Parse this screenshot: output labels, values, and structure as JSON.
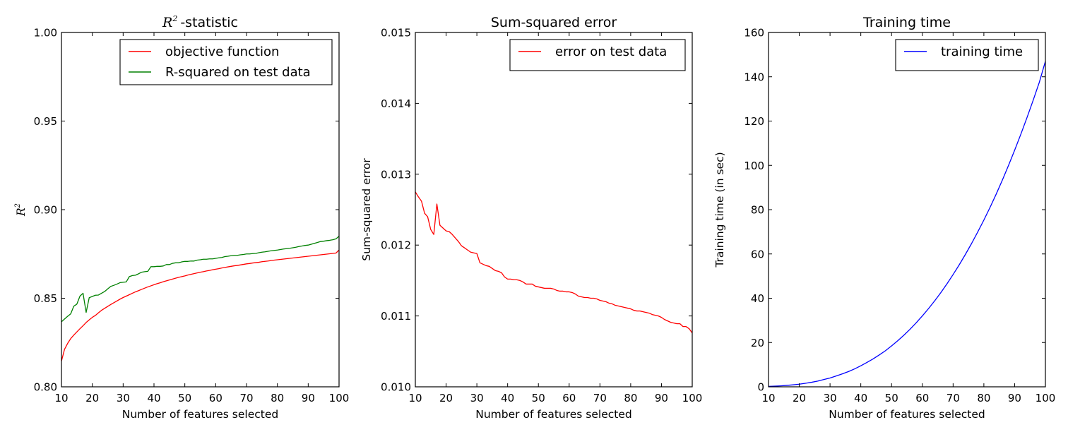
{
  "figure": {
    "background": "#ffffff"
  },
  "chart_data": [
    {
      "type": "line",
      "title_math": "R",
      "title_sup": "2",
      "title": "-statistic",
      "xlabel": "Number of features selected",
      "ylabel_math": "R",
      "ylabel_sup": "2",
      "xlim": [
        10,
        100
      ],
      "ylim": [
        0.8,
        1.0
      ],
      "xticks": [
        "10",
        "20",
        "30",
        "40",
        "50",
        "60",
        "70",
        "80",
        "90",
        "100"
      ],
      "yticks": [
        "0.80",
        "0.85",
        "0.90",
        "0.95",
        "1.00"
      ],
      "grid": false,
      "legend_position": "top-right",
      "x": [
        10,
        11,
        12,
        13,
        14,
        15,
        16,
        17,
        18,
        19,
        20,
        21,
        22,
        23,
        24,
        25,
        26,
        27,
        28,
        29,
        30,
        31,
        32,
        33,
        34,
        35,
        36,
        37,
        38,
        39,
        40,
        41,
        42,
        43,
        44,
        45,
        46,
        47,
        48,
        49,
        50,
        51,
        52,
        53,
        54,
        55,
        56,
        57,
        58,
        59,
        60,
        61,
        62,
        63,
        64,
        65,
        66,
        67,
        68,
        69,
        70,
        71,
        72,
        73,
        74,
        75,
        76,
        77,
        78,
        79,
        80,
        81,
        82,
        83,
        84,
        85,
        86,
        87,
        88,
        89,
        90,
        91,
        92,
        93,
        94,
        95,
        96,
        97,
        98,
        99,
        100
      ],
      "series": [
        {
          "name": "objective function",
          "color": "#ff0000",
          "values": [
            0.8145,
            0.8212,
            0.8245,
            0.8272,
            0.8292,
            0.831,
            0.8328,
            0.8345,
            0.8363,
            0.8378,
            0.8392,
            0.8403,
            0.8418,
            0.8432,
            0.8443,
            0.8454,
            0.8465,
            0.8475,
            0.8485,
            0.8495,
            0.8504,
            0.8512,
            0.852,
            0.8528,
            0.8536,
            0.8543,
            0.855,
            0.8557,
            0.8564,
            0.857,
            0.8576,
            0.8582,
            0.8587,
            0.8593,
            0.8598,
            0.8603,
            0.8608,
            0.8613,
            0.8618,
            0.8622,
            0.8626,
            0.8631,
            0.8635,
            0.8639,
            0.8643,
            0.8647,
            0.865,
            0.8654,
            0.8657,
            0.8661,
            0.8664,
            0.8667,
            0.8671,
            0.8674,
            0.8677,
            0.868,
            0.8683,
            0.8685,
            0.8688,
            0.8691,
            0.8694,
            0.8696,
            0.8699,
            0.8701,
            0.8703,
            0.8706,
            0.8708,
            0.871,
            0.8713,
            0.8715,
            0.8717,
            0.8719,
            0.8721,
            0.8723,
            0.8725,
            0.8727,
            0.8729,
            0.8731,
            0.8733,
            0.8735,
            0.8737,
            0.8739,
            0.8741,
            0.8743,
            0.8745,
            0.8747,
            0.8749,
            0.8751,
            0.8753,
            0.8755,
            0.8772
          ]
        },
        {
          "name": "R-squared on test data",
          "color": "#008000",
          "values": [
            0.8367,
            0.8383,
            0.8398,
            0.8412,
            0.8455,
            0.8467,
            0.8512,
            0.8528,
            0.842,
            0.8503,
            0.851,
            0.8517,
            0.8518,
            0.8528,
            0.8538,
            0.8553,
            0.8567,
            0.8573,
            0.858,
            0.8588,
            0.859,
            0.8592,
            0.8622,
            0.8628,
            0.863,
            0.8638,
            0.8647,
            0.865,
            0.8652,
            0.8678,
            0.8678,
            0.868,
            0.868,
            0.8682,
            0.869,
            0.869,
            0.8697,
            0.87,
            0.87,
            0.8705,
            0.8708,
            0.8708,
            0.871,
            0.871,
            0.8715,
            0.8717,
            0.872,
            0.872,
            0.8722,
            0.8722,
            0.8725,
            0.8728,
            0.873,
            0.8735,
            0.8737,
            0.874,
            0.8742,
            0.8742,
            0.8745,
            0.8747,
            0.875,
            0.875,
            0.8752,
            0.8753,
            0.8757,
            0.876,
            0.8762,
            0.8765,
            0.8768,
            0.877,
            0.8772,
            0.8775,
            0.8778,
            0.878,
            0.8782,
            0.8785,
            0.8788,
            0.8792,
            0.8795,
            0.8798,
            0.88,
            0.8805,
            0.881,
            0.8815,
            0.882,
            0.8822,
            0.8825,
            0.8827,
            0.883,
            0.8835,
            0.885
          ]
        }
      ]
    },
    {
      "type": "line",
      "title": "Sum-squared error",
      "xlabel": "Number of features selected",
      "ylabel": "Sum-squared error",
      "xlim": [
        10,
        100
      ],
      "ylim": [
        0.01,
        0.015
      ],
      "xticks": [
        "10",
        "20",
        "30",
        "40",
        "50",
        "60",
        "70",
        "80",
        "90",
        "100"
      ],
      "yticks": [
        "0.010",
        "0.011",
        "0.012",
        "0.013",
        "0.014",
        "0.015"
      ],
      "grid": false,
      "legend_position": "top-right",
      "x": [
        10,
        11,
        12,
        13,
        14,
        15,
        16,
        17,
        18,
        19,
        20,
        21,
        22,
        23,
        24,
        25,
        26,
        27,
        28,
        29,
        30,
        31,
        32,
        33,
        34,
        35,
        36,
        37,
        38,
        39,
        40,
        41,
        42,
        43,
        44,
        45,
        46,
        47,
        48,
        49,
        50,
        51,
        52,
        53,
        54,
        55,
        56,
        57,
        58,
        59,
        60,
        61,
        62,
        63,
        64,
        65,
        66,
        67,
        68,
        69,
        70,
        71,
        72,
        73,
        74,
        75,
        76,
        77,
        78,
        79,
        80,
        81,
        82,
        83,
        84,
        85,
        86,
        87,
        88,
        89,
        90,
        91,
        92,
        93,
        94,
        95,
        96,
        97,
        98,
        99,
        100
      ],
      "series": [
        {
          "name": "error on test data",
          "color": "#ff0000",
          "values": [
            0.01275,
            0.01268,
            0.01262,
            0.01245,
            0.0124,
            0.01222,
            0.01215,
            0.01258,
            0.01228,
            0.01224,
            0.0122,
            0.01219,
            0.01215,
            0.0121,
            0.01205,
            0.01199,
            0.01196,
            0.01193,
            0.0119,
            0.01189,
            0.01188,
            0.01175,
            0.01173,
            0.01171,
            0.0117,
            0.01167,
            0.01164,
            0.01163,
            0.01161,
            0.01155,
            0.01152,
            0.01152,
            0.01151,
            0.01151,
            0.0115,
            0.01148,
            0.01145,
            0.01145,
            0.01145,
            0.01142,
            0.01141,
            0.0114,
            0.01139,
            0.01139,
            0.01139,
            0.01138,
            0.01136,
            0.01135,
            0.01135,
            0.01134,
            0.01134,
            0.01133,
            0.01131,
            0.01128,
            0.01127,
            0.01126,
            0.01126,
            0.01125,
            0.01125,
            0.01124,
            0.01122,
            0.01121,
            0.0112,
            0.01118,
            0.01117,
            0.01115,
            0.01114,
            0.01113,
            0.01112,
            0.01111,
            0.0111,
            0.01108,
            0.01107,
            0.01107,
            0.01106,
            0.01105,
            0.01104,
            0.01102,
            0.01101,
            0.011,
            0.01098,
            0.01095,
            0.01093,
            0.01091,
            0.0109,
            0.01089,
            0.01089,
            0.01085,
            0.01085,
            0.01082,
            0.01076
          ]
        }
      ]
    },
    {
      "type": "line",
      "title": "Training time",
      "xlabel": "Number of features selected",
      "ylabel": "Training time (in sec)",
      "xlim": [
        10,
        100
      ],
      "ylim": [
        0,
        160
      ],
      "xticks": [
        "10",
        "20",
        "30",
        "40",
        "50",
        "60",
        "70",
        "80",
        "90",
        "100"
      ],
      "yticks": [
        "0",
        "20",
        "40",
        "60",
        "80",
        "100",
        "120",
        "140",
        "160"
      ],
      "grid": false,
      "legend_position": "top-right",
      "x": [
        10,
        12,
        14,
        16,
        18,
        20,
        22,
        24,
        26,
        28,
        30,
        32,
        34,
        36,
        38,
        40,
        42,
        44,
        46,
        48,
        50,
        52,
        54,
        56,
        58,
        60,
        62,
        64,
        66,
        68,
        70,
        72,
        74,
        76,
        78,
        80,
        82,
        84,
        86,
        88,
        90,
        92,
        94,
        96,
        98,
        100
      ],
      "series": [
        {
          "name": "training time",
          "color": "#0000ff",
          "values": [
            0.2,
            0.3,
            0.45,
            0.65,
            0.9,
            1.2,
            1.6,
            2.05,
            2.6,
            3.3,
            4.0,
            4.9,
            5.85,
            6.9,
            8.1,
            9.5,
            11.0,
            12.6,
            14.4,
            16.3,
            18.5,
            20.8,
            23.3,
            26.0,
            28.9,
            32.0,
            35.3,
            38.8,
            42.5,
            46.5,
            50.7,
            55.1,
            59.8,
            64.7,
            69.9,
            75.3,
            81.0,
            87.0,
            93.3,
            99.9,
            106.8,
            114.0,
            121.5,
            129.3,
            137.4,
            147.0
          ]
        }
      ]
    }
  ]
}
